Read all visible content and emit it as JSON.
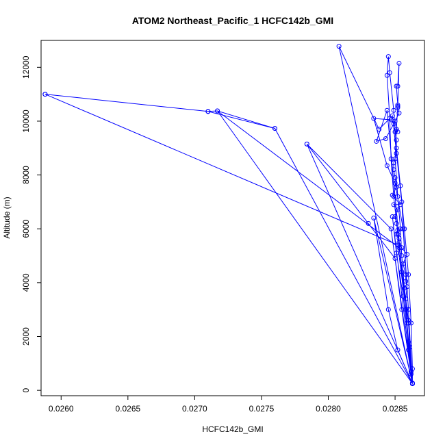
{
  "chart_data": {
    "type": "line",
    "title": "ATOM2 Northeast_Pacific_1 HCFC142b_GMI",
    "xlabel": "HCFC142b_GMI",
    "ylabel": "Altitude (m)",
    "xlim": [
      0.02585,
      0.02872
    ],
    "ylim": [
      -200,
      13000
    ],
    "x_ticks": [
      0.026,
      0.0265,
      0.027,
      0.0275,
      0.028,
      0.0285
    ],
    "x_tick_labels": [
      "0.0260",
      "0.0265",
      "0.0270",
      "0.0275",
      "0.0280",
      "0.0285"
    ],
    "y_ticks": [
      0,
      2000,
      4000,
      6000,
      8000,
      10000,
      12000
    ],
    "y_tick_labels": [
      "0",
      "2000",
      "4000",
      "6000",
      "8000",
      "10000",
      "12000"
    ],
    "grid": false,
    "legend": "none",
    "series": [
      {
        "color": "#0000ff",
        "marker": "open-circle",
        "points": [
          [
            0.02863,
            250
          ],
          [
            0.02862,
            600
          ],
          [
            0.0286,
            1500
          ],
          [
            0.02859,
            2500
          ],
          [
            0.02858,
            3400
          ],
          [
            0.02859,
            3850
          ],
          [
            0.02858,
            4050
          ],
          [
            0.02858,
            4300
          ],
          [
            0.02856,
            4700
          ],
          [
            0.02859,
            5050
          ],
          [
            0.02855,
            5300
          ],
          [
            0.02853,
            5500
          ],
          [
            0.02853,
            5650
          ],
          [
            0.02851,
            5800
          ],
          [
            0.02852,
            5950
          ],
          [
            0.02851,
            6200
          ],
          [
            0.0285,
            6450
          ],
          [
            0.02852,
            6700
          ],
          [
            0.02849,
            6900
          ],
          [
            0.02854,
            6900
          ],
          [
            0.02848,
            7250
          ],
          [
            0.02851,
            7550
          ],
          [
            0.0285,
            7900
          ],
          [
            0.02849,
            8200
          ],
          [
            0.02849,
            8450
          ],
          [
            0.02851,
            8800
          ],
          [
            0.02851,
            9300
          ],
          [
            0.0285,
            9600
          ],
          [
            0.02852,
            9600
          ],
          [
            0.0285,
            10000
          ],
          [
            0.02853,
            10300
          ],
          [
            0.02852,
            10500
          ],
          [
            0.02852,
            10600
          ],
          [
            0.02851,
            11300
          ],
          [
            0.02852,
            11300
          ],
          [
            0.02853,
            12150
          ],
          [
            0.02852,
            10550
          ],
          [
            0.02851,
            9700
          ],
          [
            0.0285,
            8600
          ],
          [
            0.02852,
            7200
          ],
          [
            0.02854,
            6000
          ],
          [
            0.02855,
            5000
          ],
          [
            0.02857,
            3800
          ],
          [
            0.0286,
            2600
          ],
          [
            0.02861,
            1600
          ],
          [
            0.02862,
            700
          ],
          [
            0.02863,
            270
          ],
          [
            0.02862,
            700
          ],
          [
            0.0286,
            1800
          ],
          [
            0.02858,
            3000
          ],
          [
            0.02855,
            4400
          ],
          [
            0.02852,
            5800
          ],
          [
            0.02849,
            7200
          ],
          [
            0.02847,
            8600
          ],
          [
            0.02846,
            10100
          ],
          [
            0.02844,
            11700
          ],
          [
            0.02845,
            12400
          ],
          [
            0.02846,
            11800
          ],
          [
            0.02849,
            10400
          ],
          [
            0.02851,
            9000
          ],
          [
            0.02854,
            7600
          ],
          [
            0.02857,
            6000
          ],
          [
            0.0286,
            4300
          ],
          [
            0.02862,
            2500
          ],
          [
            0.02863,
            800
          ],
          [
            0.02863,
            260
          ],
          [
            0.02844,
            10400
          ],
          [
            0.02836,
            9250
          ],
          [
            0.02843,
            9350
          ],
          [
            0.02849,
            9900
          ],
          [
            0.02847,
            10050
          ],
          [
            0.02834,
            10100
          ],
          [
            0.02844,
            8350
          ],
          [
            0.0285,
            7700
          ],
          [
            0.02856,
            6000
          ],
          [
            0.0286,
            3000
          ],
          [
            0.02863,
            250
          ],
          [
            0.02808,
            12780
          ],
          [
            0.02838,
            9700
          ],
          [
            0.02848,
            10200
          ],
          [
            0.02855,
            7000
          ],
          [
            0.0286,
            3000
          ],
          [
            0.02863,
            250
          ],
          [
            0.02848,
            6450
          ],
          [
            0.02851,
            5100
          ],
          [
            0.02856,
            3500
          ],
          [
            0.0286,
            1800
          ],
          [
            0.02863,
            260
          ],
          [
            0.02834,
            6400
          ],
          [
            0.02845,
            3000
          ],
          [
            0.02852,
            1500
          ],
          [
            0.02863,
            250
          ],
          [
            0.02784,
            9150
          ],
          [
            0.0283,
            6200
          ],
          [
            0.0285,
            4900
          ],
          [
            0.02863,
            250
          ],
          [
            0.02784,
            9150
          ],
          [
            0.02847,
            6000
          ],
          [
            0.02855,
            3000
          ],
          [
            0.02863,
            250
          ],
          [
            0.0276,
            9730
          ],
          [
            0.02717,
            10380
          ],
          [
            0.0271,
            10360
          ],
          [
            0.0276,
            9730
          ],
          [
            0.0271,
            10360
          ],
          [
            0.02588,
            11000
          ],
          [
            0.0271,
            10360
          ],
          [
            0.02588,
            11000
          ],
          [
            0.02852,
            5400
          ],
          [
            0.02858,
            3000
          ],
          [
            0.02863,
            250
          ],
          [
            0.02717,
            10380
          ],
          [
            0.02853,
            5300
          ],
          [
            0.0286,
            2500
          ],
          [
            0.02863,
            250
          ]
        ]
      }
    ]
  }
}
